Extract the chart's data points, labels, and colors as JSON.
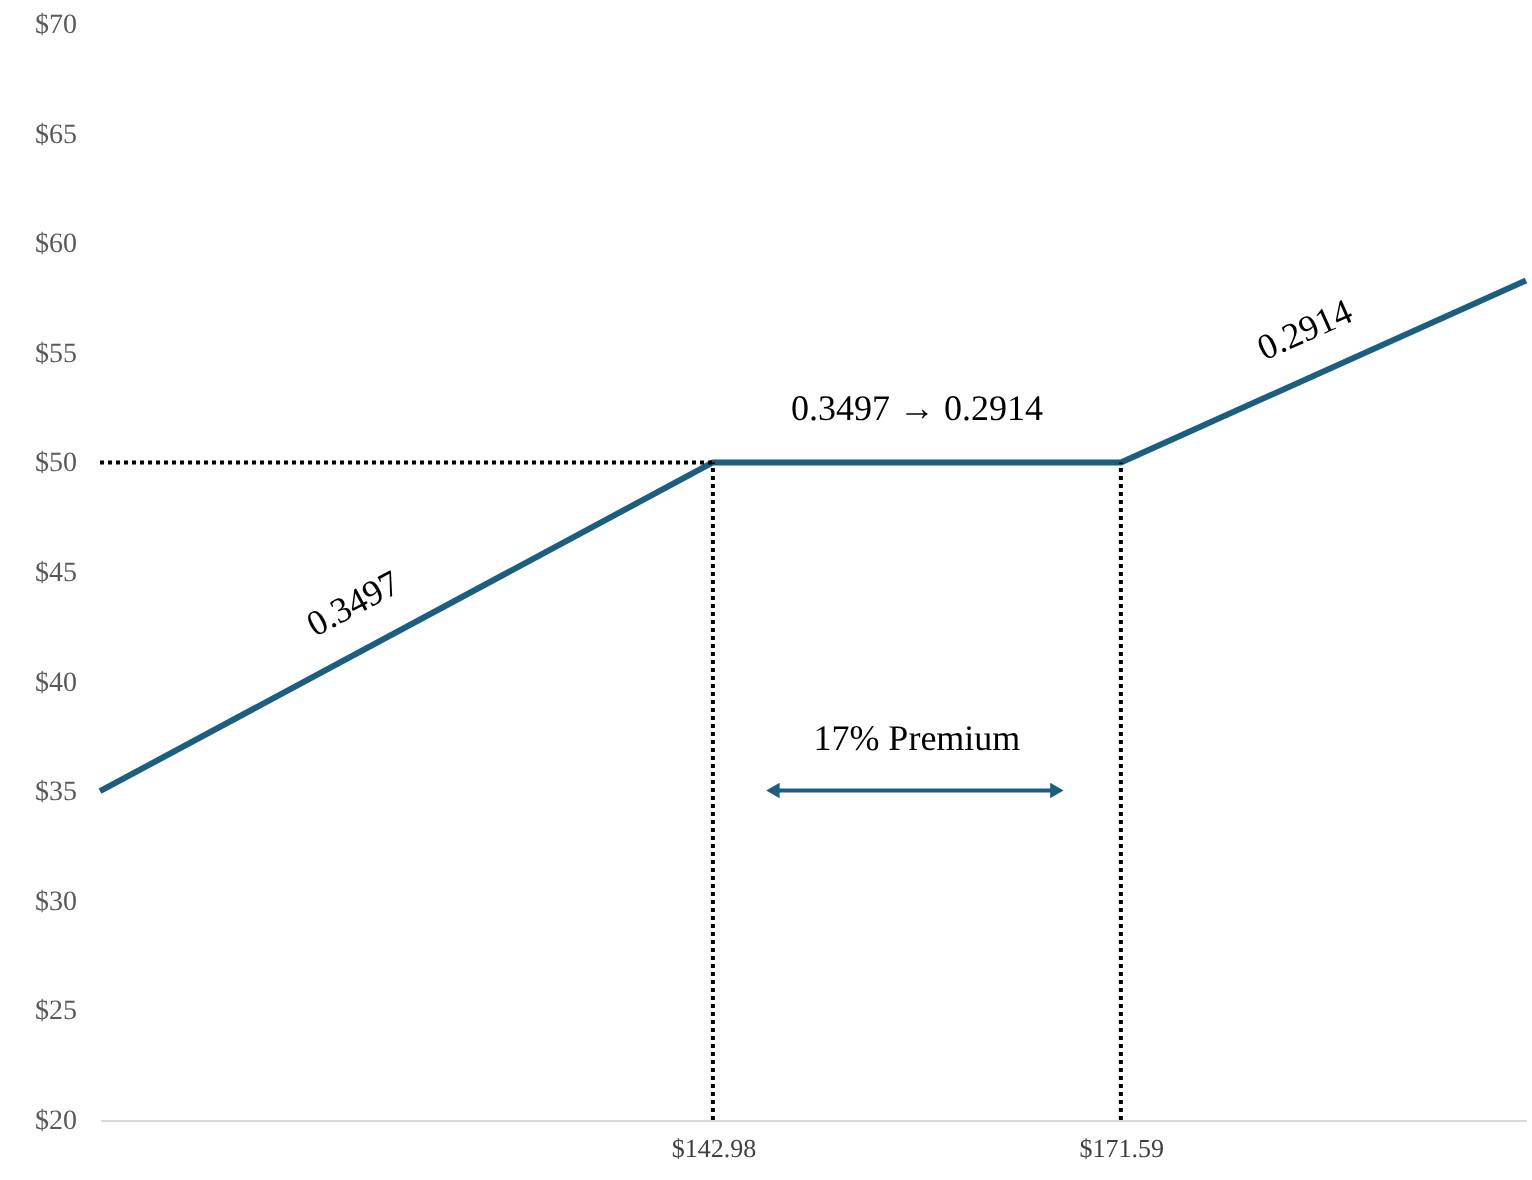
{
  "chart_data": {
    "type": "line",
    "xlim": [
      100,
      200
    ],
    "xticks": [
      {
        "value": 142.98,
        "label": "$142.98"
      },
      {
        "value": 171.59,
        "label": "$171.59"
      }
    ],
    "ylim": [
      20,
      70
    ],
    "yticks": [
      {
        "value": 20,
        "label": "$20"
      },
      {
        "value": 25,
        "label": "$25"
      },
      {
        "value": 30,
        "label": "$30"
      },
      {
        "value": 35,
        "label": "$35"
      },
      {
        "value": 40,
        "label": "$40"
      },
      {
        "value": 45,
        "label": "$45"
      },
      {
        "value": 50,
        "label": "$50"
      },
      {
        "value": 55,
        "label": "$55"
      },
      {
        "value": 60,
        "label": "$60"
      },
      {
        "value": 65,
        "label": "$65"
      },
      {
        "value": 70,
        "label": "$70"
      }
    ],
    "grid": false,
    "marker": "none",
    "series": [
      {
        "color": "#1b5e80",
        "line_style": "solid",
        "x": [
          100,
          142.98,
          171.59,
          200
        ],
        "values": [
          35,
          50,
          50,
          58.3
        ]
      },
      {
        "color": "#000000",
        "line_style": "dotted",
        "x": [
          100,
          142.98
        ],
        "values": [
          50,
          50
        ]
      },
      {
        "color": "#000000",
        "line_style": "dotted",
        "x": [
          142.98,
          142.98
        ],
        "values": [
          20,
          50
        ]
      },
      {
        "color": "#000000",
        "line_style": "dotted",
        "x": [
          171.59,
          171.59
        ],
        "values": [
          20,
          50
        ]
      }
    ],
    "annotations": [
      "0.3497",
      "0.3497 → 0.2914",
      "0.2914",
      "17% Premium"
    ]
  }
}
